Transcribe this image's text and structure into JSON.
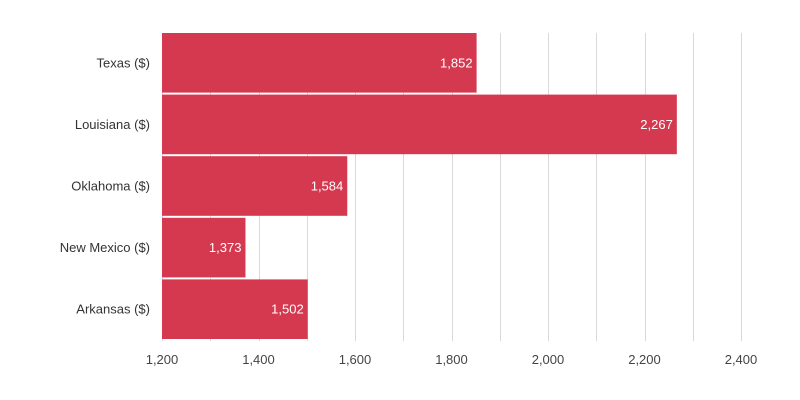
{
  "chart_data": {
    "type": "bar",
    "orientation": "horizontal",
    "categories": [
      "Texas ($)",
      "Louisiana ($)",
      "Oklahoma ($)",
      "New Mexico ($)",
      "Arkansas ($)"
    ],
    "values": [
      1852,
      2267,
      1584,
      1373,
      1502
    ],
    "value_labels": [
      "1,852",
      "2,267",
      "1,584",
      "1,373",
      "1,502"
    ],
    "xlim": [
      1200,
      2450
    ],
    "x_ticks": [
      1200,
      1400,
      1600,
      1800,
      2000,
      2200,
      2400
    ],
    "x_tick_labels": [
      "1,200",
      "1,400",
      "1,600",
      "1,800",
      "2,000",
      "2,200",
      "2,400"
    ],
    "title": "",
    "xlabel": "",
    "ylabel": "",
    "grid": true,
    "legend": "none",
    "bar_color": "#d4394f"
  }
}
